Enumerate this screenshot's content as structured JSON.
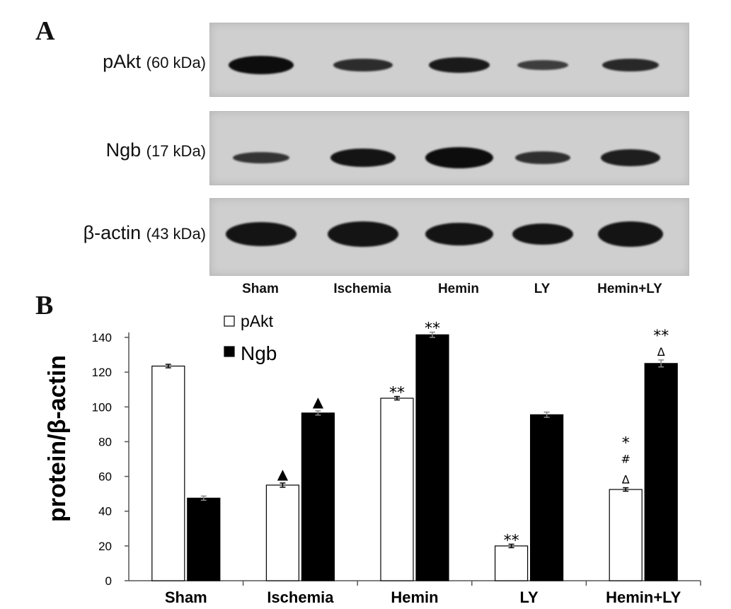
{
  "panel_a": {
    "label": "A",
    "blots": [
      {
        "protein": "pAkt",
        "size": "(60 kDa)",
        "intensity": [
          1.0,
          0.65,
          0.85,
          0.45,
          0.7
        ]
      },
      {
        "protein": "Ngb",
        "size": "(17 kDa)",
        "intensity": [
          0.55,
          0.9,
          1.0,
          0.6,
          0.8
        ]
      },
      {
        "protein": "β-actin",
        "size": "(43 kDa)",
        "intensity": [
          0.9,
          0.9,
          0.9,
          0.9,
          0.9
        ]
      }
    ],
    "lanes": [
      "Sham",
      "Ischemia",
      "Hemin",
      "LY",
      "Hemin+LY"
    ]
  },
  "panel_b": {
    "label": "B"
  },
  "chart_data": {
    "type": "bar",
    "categories": [
      "Sham",
      "Ischemia",
      "Hemin",
      "LY",
      "Hemin+LY"
    ],
    "series": [
      {
        "name": "pAkt",
        "values": [
          123.5,
          55,
          105,
          20,
          52.5
        ],
        "errors": [
          1,
          1.2,
          1,
          1,
          1
        ],
        "fill": "#ffffff",
        "annotations": [
          [],
          [
            "▲"
          ],
          [
            "**"
          ],
          [
            "**"
          ],
          [
            "Δ",
            "#",
            "*"
          ]
        ]
      },
      {
        "name": "Ngb",
        "values": [
          47.5,
          96.5,
          141.5,
          95.5,
          125
        ],
        "errors": [
          1.2,
          1.2,
          1.5,
          1.5,
          2
        ],
        "fill": "#000000",
        "annotations": [
          [],
          [
            "▲"
          ],
          [
            "**"
          ],
          [],
          [
            "Δ",
            "**"
          ]
        ]
      }
    ],
    "ylabel": "protein/β-actin",
    "xlabel": "",
    "ylim": [
      0,
      150
    ],
    "yticks": [
      0,
      20,
      40,
      60,
      80,
      100,
      120,
      140
    ],
    "legend": "top-center",
    "grid": false
  }
}
